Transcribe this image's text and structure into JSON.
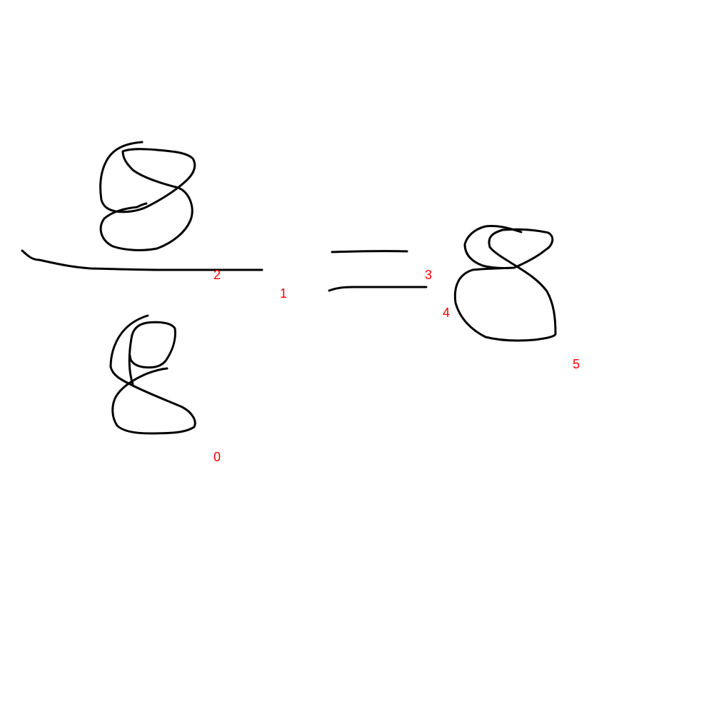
{
  "colors": {
    "background": "#ffffff",
    "ink": "#000000",
    "stroke_index_label": "#ff0000"
  },
  "stroke_indices": [
    {
      "label": "0"
    },
    {
      "label": "1"
    },
    {
      "label": "2"
    },
    {
      "label": "3"
    },
    {
      "label": "4"
    },
    {
      "label": "5"
    }
  ]
}
